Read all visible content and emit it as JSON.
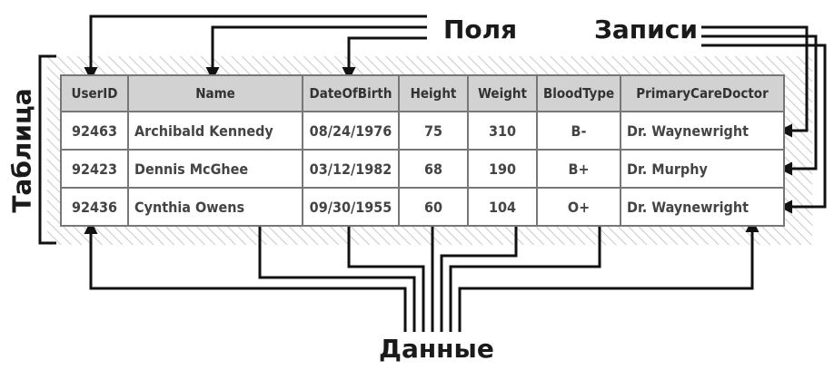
{
  "labels": {
    "fields": "Поля",
    "records": "Записи",
    "data": "Данные",
    "table": "Таблица"
  },
  "table": {
    "headers": [
      "UserID",
      "Name",
      "DateOfBirth",
      "Height",
      "Weight",
      "BloodType",
      "PrimaryCareDoctor"
    ],
    "rows": [
      [
        "92463",
        "Archibald Kennedy",
        "08/24/1976",
        "75",
        "310",
        "B-",
        "Dr. Waynewright"
      ],
      [
        "92423",
        "Dennis McGhee",
        "03/12/1982",
        "68",
        "190",
        "B+",
        "Dr. Murphy"
      ],
      [
        "92436",
        "Cynthia Owens",
        "09/30/1955",
        "60",
        "104",
        "O+",
        "Dr. Waynewright"
      ]
    ]
  },
  "colors": {
    "line": "#111111",
    "header_bg": "#d2d2d2",
    "grid": "#777777",
    "hatch": "#cccccc"
  }
}
